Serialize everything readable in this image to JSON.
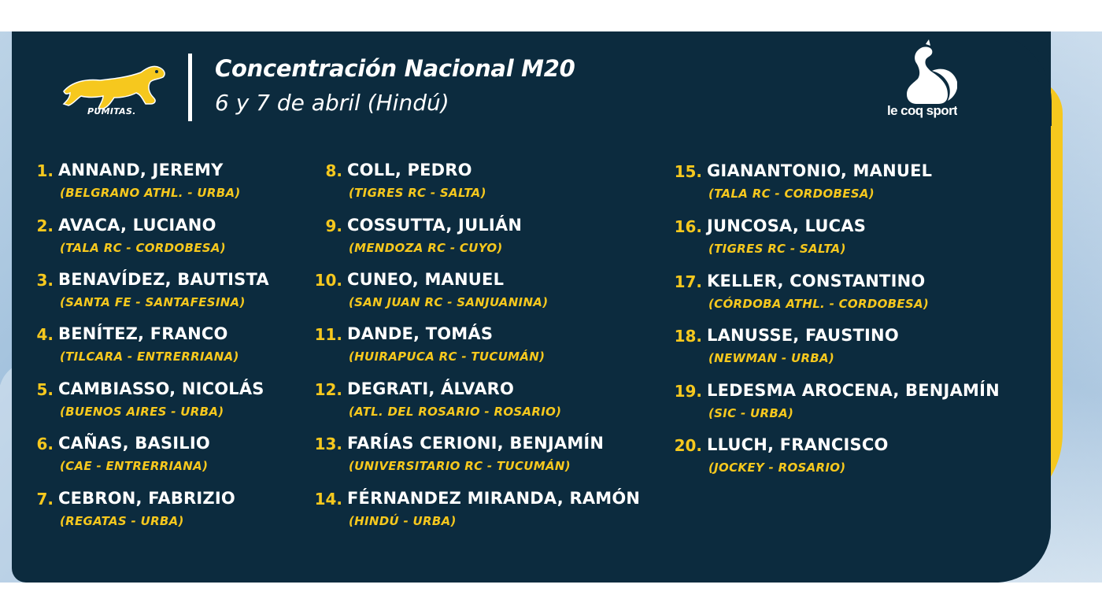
{
  "brand": {
    "team": "PUMITAS.",
    "sponsor": "le coq sportif"
  },
  "header": {
    "title": "Concentración Nacional M20",
    "subtitle": "6 y 7 de abril (Hindú)"
  },
  "colors": {
    "navy": "#0c2b3e",
    "yellow": "#f6c81e",
    "text": "#ffffff"
  },
  "players": [
    {
      "num": "1.",
      "name": "ANNAND, JEREMY",
      "club": "(BELGRANO ATHL. - URBA)"
    },
    {
      "num": "2.",
      "name": "AVACA, LUCIANO",
      "club": "(TALA RC - CORDOBESA)"
    },
    {
      "num": "3.",
      "name": "BENAVÍDEZ, BAUTISTA",
      "club": "(SANTA FE - SANTAFESINA)"
    },
    {
      "num": "4.",
      "name": "BENÍTEZ, FRANCO",
      "club": "(TILCARA - ENTRERRIANA)"
    },
    {
      "num": "5.",
      "name": "CAMBIASSO, NICOLÁS",
      "club": "(BUENOS AIRES - URBA)"
    },
    {
      "num": "6.",
      "name": "CAÑAS, BASILIO",
      "club": "(CAE - ENTRERRIANA)"
    },
    {
      "num": "7.",
      "name": "CEBRON, FABRIZIO",
      "club": "(REGATAS - URBA)"
    },
    {
      "num": "8.",
      "name": "COLL, PEDRO",
      "club": "(TIGRES RC - SALTA)"
    },
    {
      "num": "9.",
      "name": "COSSUTTA, JULIÁN",
      "club": "(MENDOZA RC - CUYO)"
    },
    {
      "num": "10.",
      "name": "CUNEO, MANUEL",
      "club": "(SAN JUAN RC - SANJUANINA)"
    },
    {
      "num": "11.",
      "name": "DANDE, TOMÁS",
      "club": "(HUIRAPUCA RC - TUCUMÁN)"
    },
    {
      "num": "12.",
      "name": "DEGRATI, ÁLVARO",
      "club": "(ATL. DEL ROSARIO - ROSARIO)"
    },
    {
      "num": "13.",
      "name": "FARÍAS CERIONI, BENJAMÍN",
      "club": "(UNIVERSITARIO RC - TUCUMÁN)"
    },
    {
      "num": "14.",
      "name": "FÉRNANDEZ MIRANDA, RAMÓN",
      "club": "(HINDÚ - URBA)"
    },
    {
      "num": "15.",
      "name": "GIANANTONIO, MANUEL",
      "club": "(TALA RC - CORDOBESA)"
    },
    {
      "num": "16.",
      "name": "JUNCOSA, LUCAS",
      "club": "(TIGRES RC - SALTA)"
    },
    {
      "num": "17.",
      "name": "KELLER, CONSTANTINO",
      "club": "(CÓRDOBA ATHL. - CORDOBESA)"
    },
    {
      "num": "18.",
      "name": "LANUSSE, FAUSTINO",
      "club": "(NEWMAN - URBA)"
    },
    {
      "num": "19.",
      "name": "LEDESMA AROCENA, BENJAMÍN",
      "club": "(SIC - URBA)"
    },
    {
      "num": "20.",
      "name": "LLUCH, FRANCISCO",
      "club": "(JOCKEY - ROSARIO)"
    }
  ]
}
